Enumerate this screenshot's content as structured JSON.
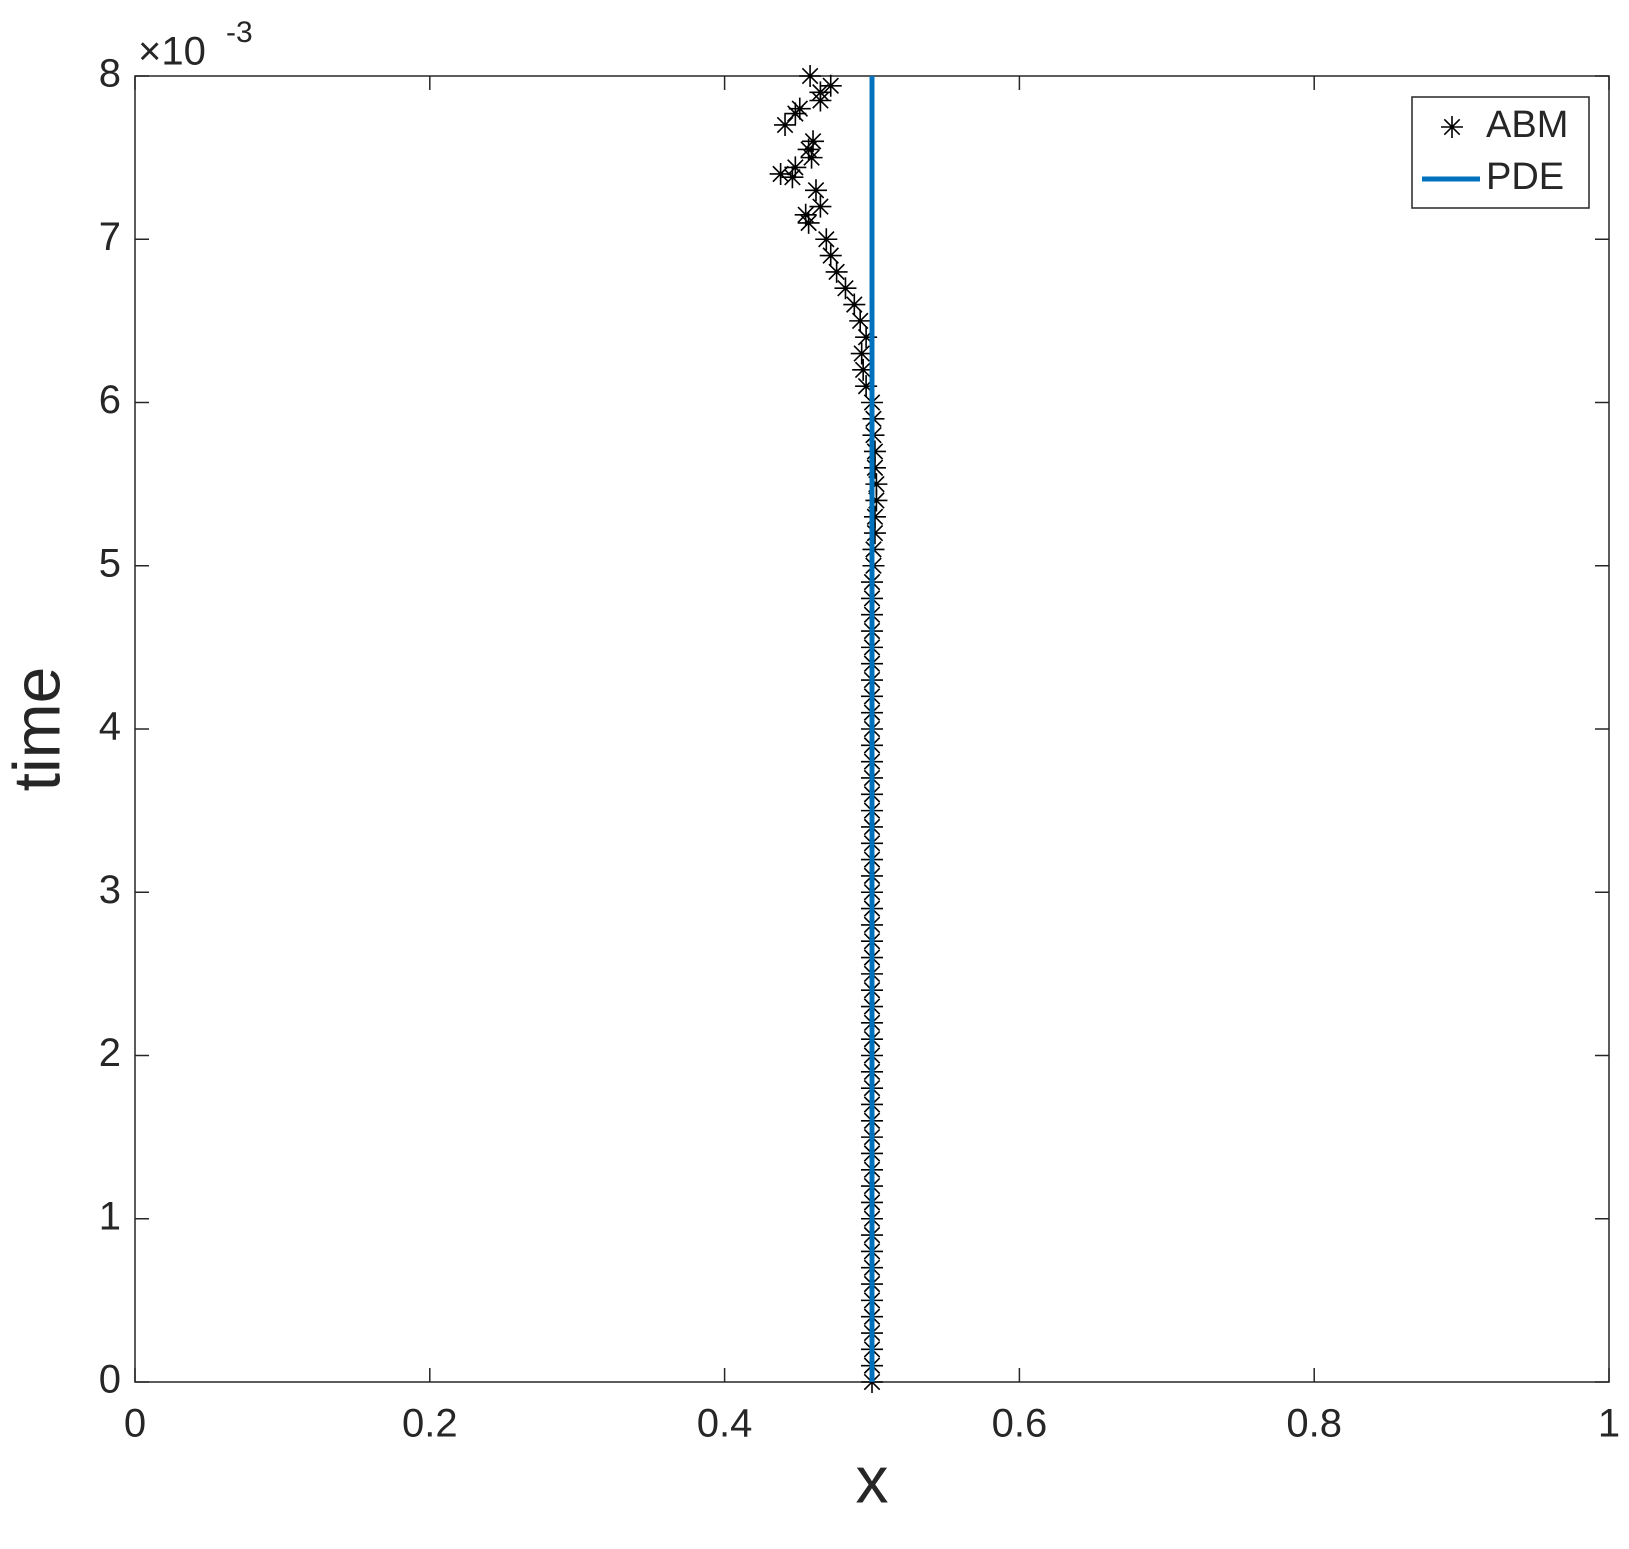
{
  "chart_data": {
    "type": "scatter_line",
    "x_label": "x",
    "y_label": "time",
    "y_exponent_base": "×10",
    "y_exponent": "-3",
    "xlim": [
      0,
      1
    ],
    "xticks": [
      0,
      0.2,
      0.4,
      0.6,
      0.8,
      1
    ],
    "ylim": [
      0,
      8
    ],
    "yticks": [
      0,
      1,
      2,
      3,
      4,
      5,
      6,
      7,
      8
    ],
    "legend": "upper right",
    "series": [
      {
        "name": "ABM",
        "kind": "scatter",
        "marker": "asterisk",
        "color": "#000000",
        "x": [
          0.5,
          0.5,
          0.5,
          0.5,
          0.5,
          0.5,
          0.5,
          0.5,
          0.5,
          0.5,
          0.5,
          0.5,
          0.5,
          0.5,
          0.5,
          0.5,
          0.5,
          0.5,
          0.5,
          0.5,
          0.5,
          0.5,
          0.5,
          0.5,
          0.5,
          0.5,
          0.5,
          0.5,
          0.5,
          0.5,
          0.5,
          0.5,
          0.5,
          0.5,
          0.5,
          0.5,
          0.5,
          0.5,
          0.5,
          0.5,
          0.5,
          0.5,
          0.5,
          0.5,
          0.5,
          0.5,
          0.5,
          0.5,
          0.5,
          0.5,
          0.501,
          0.501,
          0.502,
          0.502,
          0.503,
          0.503,
          0.502,
          0.502,
          0.501,
          0.501,
          0.5,
          0.496,
          0.494,
          0.493,
          0.496,
          0.492,
          0.488,
          0.482,
          0.476,
          0.472,
          0.469,
          0.457,
          0.455,
          0.465,
          0.462,
          0.438,
          0.446,
          0.448,
          0.459,
          0.457,
          0.46,
          0.441,
          0.448,
          0.451,
          0.465,
          0.465,
          0.472,
          0.458
        ],
        "y": [
          0,
          0.1,
          0.2,
          0.3,
          0.4,
          0.5,
          0.6,
          0.7,
          0.8,
          0.9,
          1,
          1.1,
          1.2,
          1.3,
          1.4,
          1.5,
          1.6,
          1.7,
          1.8,
          1.9,
          2,
          2.1,
          2.2,
          2.3,
          2.4,
          2.5,
          2.6,
          2.7,
          2.8,
          2.9,
          3,
          3.1,
          3.2,
          3.3,
          3.4,
          3.5,
          3.6,
          3.7,
          3.8,
          3.9,
          4,
          4.1,
          4.2,
          4.3,
          4.4,
          4.5,
          4.6,
          4.7,
          4.8,
          4.9,
          5,
          5.1,
          5.2,
          5.3,
          5.4,
          5.5,
          5.6,
          5.7,
          5.8,
          5.9,
          6,
          6.1,
          6.2,
          6.3,
          6.4,
          6.5,
          6.6,
          6.7,
          6.8,
          6.9,
          7,
          7.1,
          7.15,
          7.2,
          7.3,
          7.4,
          7.38,
          7.44,
          7.5,
          7.55,
          7.6,
          7.7,
          7.77,
          7.8,
          7.85,
          7.9,
          7.94,
          8
        ]
      },
      {
        "name": "PDE",
        "kind": "line",
        "color": "#0072bd",
        "x": [
          0.5,
          0.5
        ],
        "y": [
          0,
          8
        ]
      }
    ]
  }
}
